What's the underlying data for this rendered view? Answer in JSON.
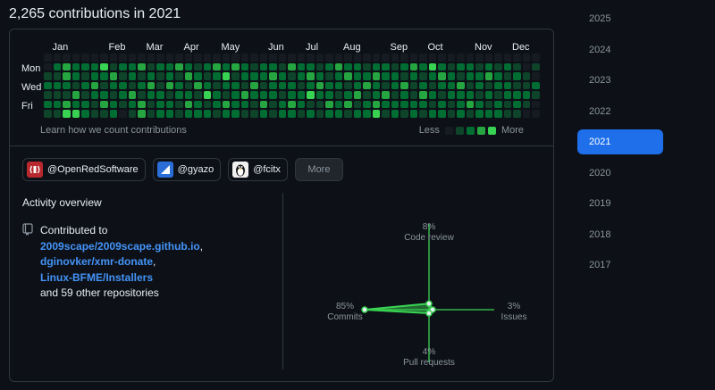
{
  "heading": "2,265 contributions in 2021",
  "calendar": {
    "months": [
      "Jan",
      "Feb",
      "Mar",
      "Apr",
      "May",
      "Jun",
      "Jul",
      "Aug",
      "Sep",
      "Oct",
      "Nov",
      "Dec"
    ],
    "days": [
      "Mon",
      "Wed",
      "Fri"
    ],
    "learn_link": "Learn how we count contributions",
    "legend_less": "Less",
    "legend_more": "More",
    "levels": [
      "#161b22",
      "#0e4429",
      "#006d32",
      "#26a641",
      "#39d353"
    ],
    "weeks": [
      [
        0,
        0,
        1,
        2,
        1,
        2,
        1
      ],
      [
        0,
        2,
        1,
        2,
        1,
        2,
        1
      ],
      [
        0,
        3,
        3,
        2,
        1,
        3,
        4
      ],
      [
        0,
        2,
        2,
        1,
        3,
        2,
        4
      ],
      [
        0,
        2,
        1,
        2,
        1,
        2,
        2
      ],
      [
        0,
        2,
        2,
        3,
        2,
        1,
        1
      ],
      [
        0,
        4,
        2,
        1,
        2,
        3,
        1
      ],
      [
        0,
        1,
        3,
        2,
        1,
        2,
        2
      ],
      [
        0,
        2,
        1,
        2,
        2,
        1,
        0
      ],
      [
        0,
        2,
        2,
        1,
        3,
        2,
        1
      ],
      [
        0,
        3,
        1,
        2,
        1,
        3,
        3
      ],
      [
        0,
        1,
        2,
        3,
        2,
        1,
        1
      ],
      [
        0,
        2,
        1,
        1,
        2,
        2,
        2
      ],
      [
        0,
        2,
        2,
        3,
        1,
        2,
        2
      ],
      [
        0,
        3,
        1,
        2,
        2,
        1,
        1
      ],
      [
        0,
        2,
        3,
        1,
        2,
        3,
        2
      ],
      [
        0,
        1,
        2,
        3,
        1,
        2,
        2
      ],
      [
        0,
        2,
        1,
        2,
        4,
        1,
        2
      ],
      [
        0,
        3,
        2,
        1,
        2,
        2,
        1
      ],
      [
        0,
        2,
        4,
        2,
        1,
        3,
        2
      ],
      [
        0,
        3,
        1,
        2,
        2,
        2,
        2
      ],
      [
        0,
        2,
        2,
        1,
        3,
        2,
        1
      ],
      [
        0,
        1,
        2,
        3,
        2,
        1,
        1
      ],
      [
        0,
        2,
        2,
        1,
        2,
        3,
        2
      ],
      [
        0,
        2,
        3,
        2,
        2,
        1,
        1
      ],
      [
        0,
        1,
        2,
        2,
        1,
        2,
        2
      ],
      [
        0,
        3,
        1,
        2,
        2,
        3,
        2
      ],
      [
        0,
        2,
        2,
        1,
        2,
        2,
        1
      ],
      [
        0,
        2,
        3,
        2,
        4,
        1,
        2
      ],
      [
        0,
        1,
        2,
        3,
        2,
        1,
        1
      ],
      [
        0,
        2,
        1,
        2,
        2,
        3,
        2
      ],
      [
        0,
        3,
        2,
        2,
        1,
        2,
        2
      ],
      [
        0,
        2,
        3,
        1,
        2,
        3,
        1
      ],
      [
        0,
        2,
        2,
        2,
        3,
        1,
        2
      ],
      [
        0,
        1,
        2,
        3,
        1,
        2,
        2
      ],
      [
        0,
        2,
        3,
        2,
        2,
        3,
        4
      ],
      [
        0,
        2,
        2,
        1,
        3,
        2,
        1
      ],
      [
        0,
        1,
        2,
        2,
        1,
        2,
        2
      ],
      [
        0,
        2,
        1,
        3,
        2,
        2,
        1
      ],
      [
        0,
        3,
        2,
        1,
        1,
        2,
        2
      ],
      [
        0,
        2,
        1,
        2,
        3,
        2,
        1
      ],
      [
        0,
        4,
        2,
        1,
        2,
        1,
        2
      ],
      [
        0,
        2,
        3,
        2,
        1,
        2,
        2
      ],
      [
        0,
        1,
        2,
        2,
        2,
        1,
        1
      ],
      [
        0,
        2,
        1,
        3,
        2,
        2,
        2
      ],
      [
        0,
        2,
        2,
        1,
        2,
        3,
        1
      ],
      [
        0,
        1,
        2,
        2,
        1,
        2,
        2
      ],
      [
        0,
        2,
        3,
        1,
        2,
        1,
        2
      ],
      [
        0,
        1,
        2,
        2,
        1,
        2,
        2
      ],
      [
        0,
        2,
        1,
        2,
        2,
        1,
        1
      ],
      [
        0,
        1,
        2,
        1,
        2,
        2,
        1
      ],
      [
        0,
        0,
        1,
        1,
        2,
        1,
        0
      ],
      [
        0,
        1,
        0,
        2,
        1,
        0,
        0
      ]
    ]
  },
  "organizations": [
    {
      "handle": "@OpenRedSoftware",
      "icon": "openredsoftware-logo-icon",
      "bg": "#b8282e",
      "glyph": "((•))"
    },
    {
      "handle": "@gyazo",
      "icon": "gyazo-logo-icon",
      "bg": "#2b6ed8",
      "glyph": "◢"
    },
    {
      "handle": "@fcitx",
      "icon": "fcitx-penguin-logo-icon",
      "bg": "#f0f0f0",
      "glyph": "🐧"
    }
  ],
  "more_button": "More",
  "activity": {
    "title": "Activity overview",
    "prefix": "Contributed to",
    "repos": [
      "2009scape/2009scape.github.io",
      "dginovker/xmr-donate",
      "Linux-BFME/Installers"
    ],
    "suffix": "and 59 other repositories"
  },
  "radar": {
    "code_review": {
      "pct": "8%",
      "label": "Code review",
      "value": 8
    },
    "issues": {
      "pct": "3%",
      "label": "Issues",
      "value": 3
    },
    "pull_requests": {
      "pct": "4%",
      "label": "Pull requests",
      "value": 4
    },
    "commits": {
      "pct": "85%",
      "label": "Commits",
      "value": 85
    },
    "color": "#39d353"
  },
  "years": [
    "2025",
    "2024",
    "2023",
    "2022",
    "2021",
    "2020",
    "2019",
    "2018",
    "2017"
  ],
  "selected_year": "2021"
}
